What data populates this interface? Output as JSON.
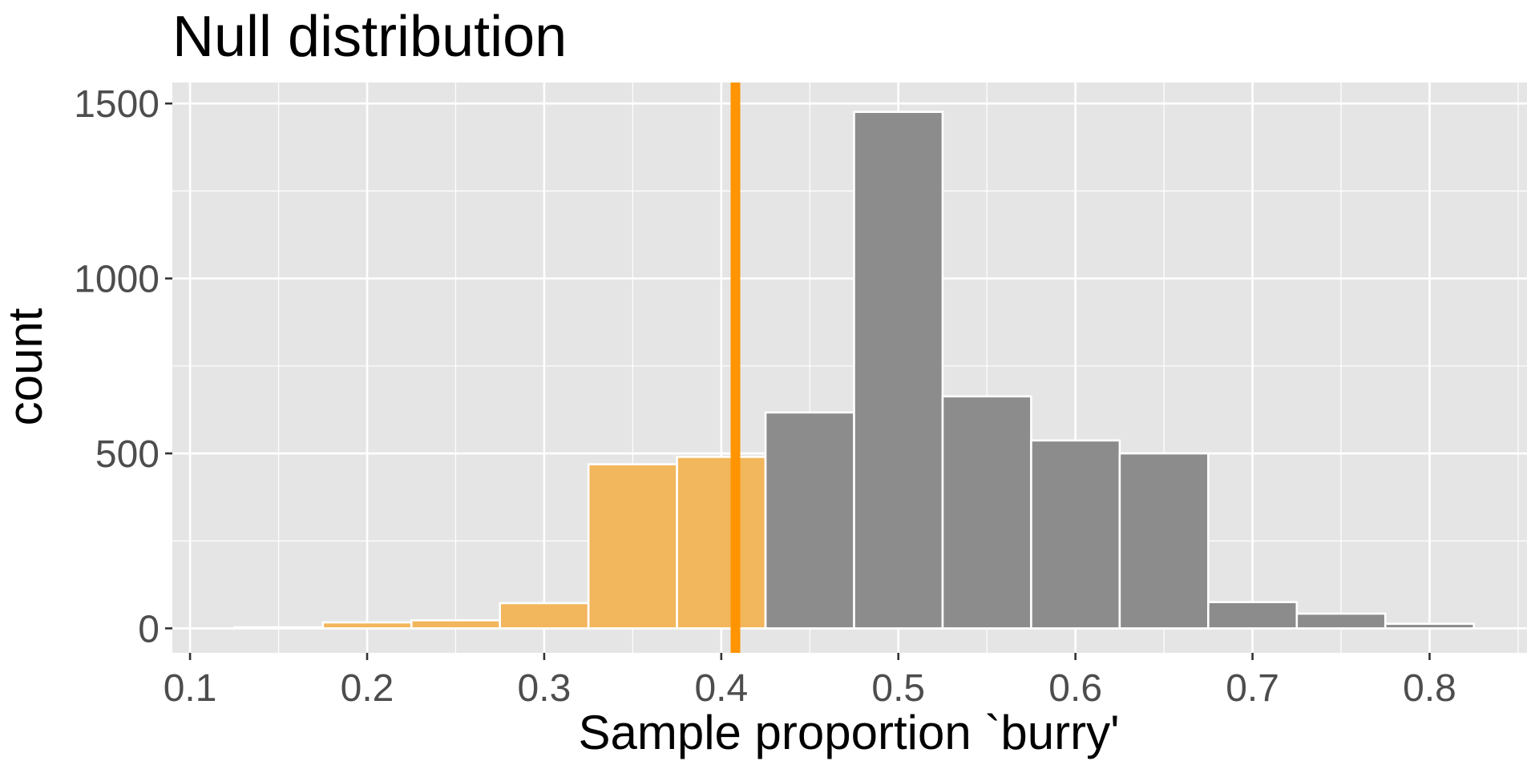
{
  "chart_data": {
    "type": "bar",
    "subtype": "histogram",
    "title": "Null distribution",
    "xlabel": "Sample proportion `burry'",
    "ylabel": "count",
    "bin_width": 0.05,
    "bins": [
      {
        "x_start": 0.125,
        "x_end": 0.175,
        "count": 3,
        "shaded": true
      },
      {
        "x_start": 0.175,
        "x_end": 0.225,
        "count": 17,
        "shaded": true
      },
      {
        "x_start": 0.225,
        "x_end": 0.275,
        "count": 23,
        "shaded": true
      },
      {
        "x_start": 0.275,
        "x_end": 0.325,
        "count": 72,
        "shaded": true
      },
      {
        "x_start": 0.325,
        "x_end": 0.375,
        "count": 469,
        "shaded": true
      },
      {
        "x_start": 0.375,
        "x_end": 0.425,
        "count": 490,
        "shaded": true
      },
      {
        "x_start": 0.425,
        "x_end": 0.475,
        "count": 617,
        "shaded": false
      },
      {
        "x_start": 0.475,
        "x_end": 0.525,
        "count": 1476,
        "shaded": false
      },
      {
        "x_start": 0.525,
        "x_end": 0.575,
        "count": 663,
        "shaded": false
      },
      {
        "x_start": 0.575,
        "x_end": 0.625,
        "count": 537,
        "shaded": false
      },
      {
        "x_start": 0.625,
        "x_end": 0.675,
        "count": 500,
        "shaded": false
      },
      {
        "x_start": 0.675,
        "x_end": 0.725,
        "count": 75,
        "shaded": false
      },
      {
        "x_start": 0.725,
        "x_end": 0.775,
        "count": 42,
        "shaded": false
      },
      {
        "x_start": 0.775,
        "x_end": 0.825,
        "count": 13,
        "shaded": false
      }
    ],
    "observed_stat": 0.408,
    "xlim": [
      0.09,
      0.855
    ],
    "ylim": [
      -70,
      1560
    ],
    "x_ticks": [
      0.1,
      0.2,
      0.3,
      0.4,
      0.5,
      0.6,
      0.7,
      0.8
    ],
    "x_tick_labels": [
      "0.1",
      "0.2",
      "0.3",
      "0.4",
      "0.5",
      "0.6",
      "0.7",
      "0.8"
    ],
    "x_minor_ticks": [
      0.15,
      0.25,
      0.35,
      0.45,
      0.55,
      0.65,
      0.75,
      0.85
    ],
    "y_ticks": [
      0,
      500,
      1000,
      1500
    ],
    "y_tick_labels": [
      "0",
      "500",
      "1000",
      "1500"
    ],
    "y_minor_ticks": [
      250,
      750,
      1250
    ],
    "grid": true,
    "legend": "none",
    "colors": {
      "panel_background": "#e5e5e5",
      "grid_line": "#ffffff",
      "bar_fill": "#8c8c8c",
      "shaded_fill": "#f2b65c",
      "bar_outline": "#ffffff",
      "observed_line": "#ff9400"
    }
  }
}
